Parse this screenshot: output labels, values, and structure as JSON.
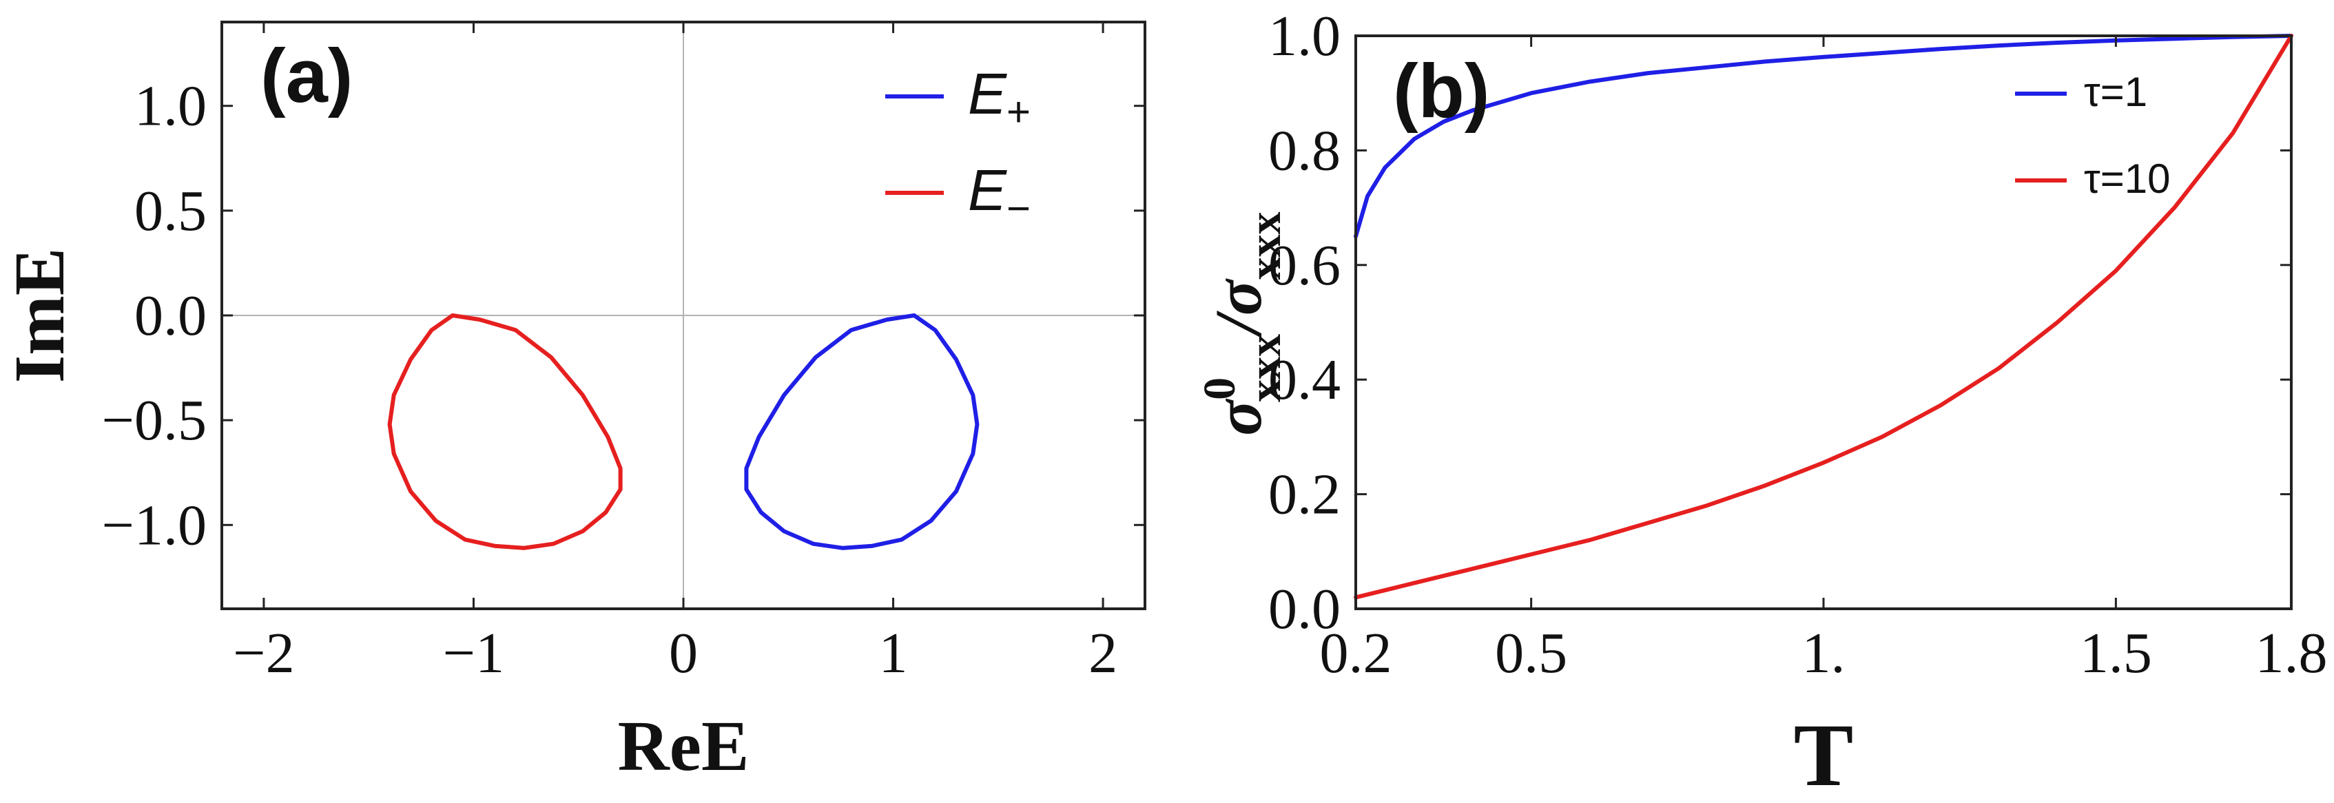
{
  "chart_data": [
    {
      "type": "line",
      "panel_label": "(a)",
      "xlabel": "ReE",
      "ylabel": "ImE",
      "xlim": [
        -2.2,
        2.2
      ],
      "ylim": [
        -1.4,
        1.4
      ],
      "x_ticks": [
        -2,
        -1,
        0,
        1,
        2
      ],
      "x_tick_labels": [
        "−2",
        "−1",
        "0",
        "1",
        "2"
      ],
      "y_ticks": [
        1.0,
        0.5,
        0.0,
        -0.5,
        -1.0
      ],
      "y_tick_labels": [
        "1.0",
        "0.5",
        "0.0",
        "−0.5",
        "−1.0"
      ],
      "zero_lines": true,
      "legend_position": "top-right",
      "series": [
        {
          "name": "E+",
          "legend_main": "E",
          "legend_sub": "+",
          "color": "#1f1fe6",
          "x": [
            1.1,
            1.2,
            1.3,
            1.38,
            1.4,
            1.38,
            1.3,
            1.18,
            1.04,
            0.9,
            0.76,
            0.62,
            0.48,
            0.37,
            0.3,
            0.3,
            0.36,
            0.48,
            0.63,
            0.8,
            0.97,
            1.1
          ],
          "y": [
            0.0,
            -0.07,
            -0.21,
            -0.38,
            -0.52,
            -0.66,
            -0.84,
            -0.98,
            -1.07,
            -1.1,
            -1.11,
            -1.09,
            -1.03,
            -0.94,
            -0.83,
            -0.73,
            -0.58,
            -0.38,
            -0.2,
            -0.07,
            -0.02,
            0.0
          ]
        },
        {
          "name": "E−",
          "legend_main": "E",
          "legend_sub": "−",
          "color": "#e61f1f",
          "x": [
            -1.1,
            -1.2,
            -1.3,
            -1.38,
            -1.4,
            -1.38,
            -1.3,
            -1.18,
            -1.04,
            -0.9,
            -0.76,
            -0.62,
            -0.48,
            -0.37,
            -0.3,
            -0.3,
            -0.36,
            -0.48,
            -0.63,
            -0.8,
            -0.97,
            -1.1
          ],
          "y": [
            0.0,
            -0.07,
            -0.21,
            -0.38,
            -0.52,
            -0.66,
            -0.84,
            -0.98,
            -1.07,
            -1.1,
            -1.11,
            -1.09,
            -1.03,
            -0.94,
            -0.83,
            -0.73,
            -0.58,
            -0.38,
            -0.2,
            -0.07,
            -0.02,
            0.0
          ]
        }
      ]
    },
    {
      "type": "line",
      "panel_label": "(b)",
      "xlabel": "T",
      "ylabel_main": "σ",
      "ylabel_sup": "0",
      "ylabel_sub": "xxx",
      "ylabel_slash": "/σ",
      "ylabel_sub2": "xxx",
      "xlim": [
        0.2,
        1.8
      ],
      "ylim": [
        0.0,
        1.0
      ],
      "x_ticks": [
        0.2,
        0.5,
        1.0,
        1.5,
        1.8
      ],
      "x_tick_labels": [
        "0.2",
        "0.5",
        "1.",
        "1.5",
        "1.8"
      ],
      "y_ticks": [
        0.0,
        0.2,
        0.4,
        0.6,
        0.8,
        1.0
      ],
      "y_tick_labels": [
        "0.0",
        "0.2",
        "0.4",
        "0.6",
        "0.8",
        "1.0"
      ],
      "legend_position": "top-right",
      "series": [
        {
          "name": "τ=1",
          "color": "#1f1fe6",
          "x": [
            0.2,
            0.22,
            0.25,
            0.3,
            0.35,
            0.4,
            0.5,
            0.6,
            0.7,
            0.8,
            0.9,
            1.0,
            1.1,
            1.2,
            1.3,
            1.4,
            1.5,
            1.6,
            1.7,
            1.8
          ],
          "y": [
            0.65,
            0.72,
            0.77,
            0.82,
            0.85,
            0.87,
            0.9,
            0.92,
            0.935,
            0.945,
            0.955,
            0.963,
            0.97,
            0.977,
            0.983,
            0.988,
            0.992,
            0.995,
            0.998,
            1.0
          ]
        },
        {
          "name": "τ=10",
          "color": "#e61f1f",
          "x": [
            0.2,
            0.3,
            0.4,
            0.5,
            0.6,
            0.7,
            0.8,
            0.9,
            1.0,
            1.1,
            1.2,
            1.3,
            1.4,
            1.5,
            1.6,
            1.7,
            1.8
          ],
          "y": [
            0.02,
            0.045,
            0.07,
            0.095,
            0.12,
            0.15,
            0.18,
            0.215,
            0.255,
            0.3,
            0.355,
            0.42,
            0.5,
            0.59,
            0.7,
            0.83,
            1.0
          ]
        }
      ]
    }
  ]
}
